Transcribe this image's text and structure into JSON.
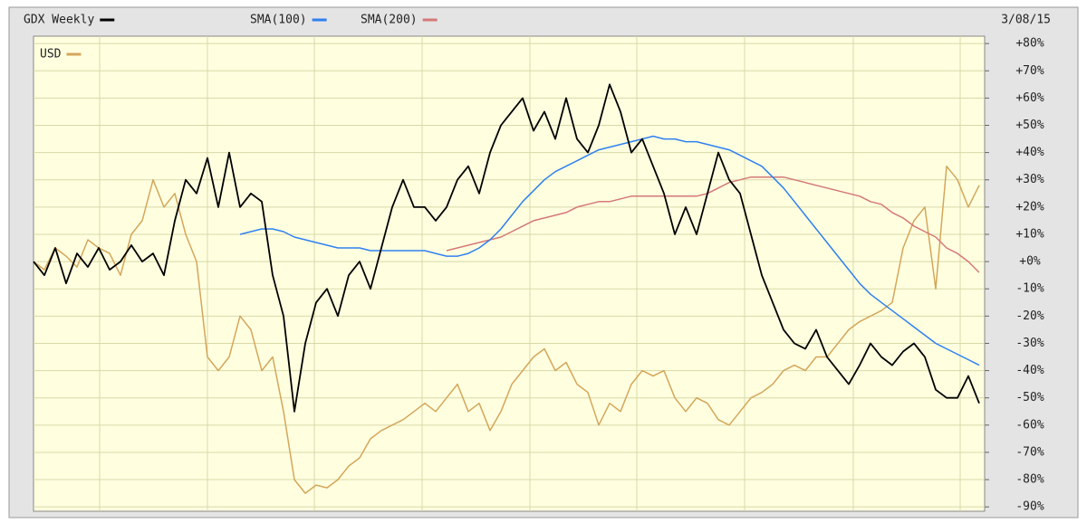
{
  "chart_data": {
    "type": "line",
    "title": "GDX Weekly",
    "date_label": "3/08/15",
    "secondary_label": "USD",
    "ylim": [
      -91.6,
      82.7
    ],
    "yticks": [
      {
        "value": 80,
        "label": "+80%"
      },
      {
        "value": 70,
        "label": "+70%"
      },
      {
        "value": 60,
        "label": "+60%"
      },
      {
        "value": 50,
        "label": "+50%"
      },
      {
        "value": 40,
        "label": "+40%"
      },
      {
        "value": 30,
        "label": "+30%"
      },
      {
        "value": 20,
        "label": "+20%"
      },
      {
        "value": 10,
        "label": "+10%"
      },
      {
        "value": 0,
        "label": "+0%"
      },
      {
        "value": -10,
        "label": "-10%"
      },
      {
        "value": -20,
        "label": "-20%"
      },
      {
        "value": -30,
        "label": "-30%"
      },
      {
        "value": -40,
        "label": "-40%"
      },
      {
        "value": -50,
        "label": "-50%"
      },
      {
        "value": -60,
        "label": "-60%"
      },
      {
        "value": -70,
        "label": "-70%"
      },
      {
        "value": -80,
        "label": "-80%"
      },
      {
        "value": -90,
        "label": "-90%"
      }
    ],
    "grid": true,
    "series": [
      {
        "name": "USD",
        "color": "#d4a65a",
        "values": [
          0,
          -3,
          5,
          2,
          -2,
          8,
          5,
          3,
          -5,
          10,
          15,
          30,
          20,
          25,
          10,
          0,
          -35,
          -40,
          -35,
          -20,
          -25,
          -40,
          -35,
          -55,
          -80,
          -85,
          -82,
          -83,
          -80,
          -75,
          -72,
          -65,
          -62,
          -60,
          -58,
          -55,
          -52,
          -55,
          -50,
          -45,
          -55,
          -52,
          -62,
          -55,
          -45,
          -40,
          -35,
          -32,
          -40,
          -37,
          -45,
          -48,
          -60,
          -52,
          -55,
          -45,
          -40,
          -42,
          -40,
          -50,
          -55,
          -50,
          -52,
          -58,
          -60,
          -55,
          -50,
          -48,
          -45,
          -40,
          -38,
          -40,
          -35,
          -35,
          -30,
          -25,
          -22,
          -20,
          -18,
          -15,
          5,
          15,
          20,
          -10,
          35,
          30,
          20,
          28
        ]
      },
      {
        "name": "SMA(200)",
        "color": "#d47878",
        "values": [
          null,
          null,
          null,
          null,
          null,
          null,
          null,
          null,
          null,
          null,
          null,
          null,
          null,
          null,
          null,
          null,
          null,
          null,
          null,
          null,
          null,
          null,
          null,
          null,
          null,
          null,
          null,
          null,
          null,
          null,
          null,
          null,
          null,
          null,
          null,
          null,
          null,
          null,
          4,
          5,
          6,
          7,
          8,
          9,
          11,
          13,
          15,
          16,
          17,
          18,
          20,
          21,
          22,
          22,
          23,
          24,
          24,
          24,
          24,
          24,
          24,
          24,
          25,
          27,
          29,
          30,
          31,
          31,
          31,
          31,
          30,
          29,
          28,
          27,
          26,
          25,
          24,
          22,
          21,
          18,
          16,
          13,
          11,
          9,
          5,
          3,
          0,
          -4
        ]
      },
      {
        "name": "SMA(100)",
        "color": "#2f80f0",
        "values": [
          null,
          null,
          null,
          null,
          null,
          null,
          null,
          null,
          null,
          null,
          null,
          null,
          null,
          null,
          null,
          null,
          null,
          null,
          null,
          10,
          11,
          12,
          12,
          11,
          9,
          8,
          7,
          6,
          5,
          5,
          5,
          4,
          4,
          4,
          4,
          4,
          4,
          3,
          2,
          2,
          3,
          5,
          8,
          12,
          17,
          22,
          26,
          30,
          33,
          35,
          37,
          39,
          41,
          42,
          43,
          44,
          45,
          46,
          45,
          45,
          44,
          44,
          43,
          42,
          41,
          39,
          37,
          35,
          31,
          27,
          22,
          17,
          12,
          7,
          2,
          -3,
          -8,
          -12,
          -15,
          -18,
          -21,
          -24,
          -27,
          -30,
          -32,
          -34,
          -36,
          -38
        ]
      },
      {
        "name": "GDX Weekly",
        "color": "#000000",
        "values": [
          0,
          -5,
          5,
          -8,
          3,
          -2,
          5,
          -3,
          0,
          6,
          0,
          3,
          -5,
          15,
          30,
          25,
          38,
          20,
          40,
          20,
          25,
          22,
          -5,
          -20,
          -55,
          -30,
          -15,
          -10,
          -20,
          -5,
          0,
          -10,
          5,
          20,
          30,
          20,
          20,
          15,
          20,
          30,
          35,
          25,
          40,
          50,
          55,
          60,
          48,
          55,
          45,
          60,
          45,
          40,
          50,
          65,
          55,
          40,
          45,
          35,
          25,
          10,
          20,
          10,
          25,
          40,
          30,
          25,
          10,
          -5,
          -15,
          -25,
          -30,
          -32,
          -25,
          -35,
          -40,
          -45,
          -38,
          -30,
          -35,
          -38,
          -33,
          -30,
          -35,
          -47,
          -50,
          -50,
          -42,
          -52
        ]
      }
    ]
  }
}
